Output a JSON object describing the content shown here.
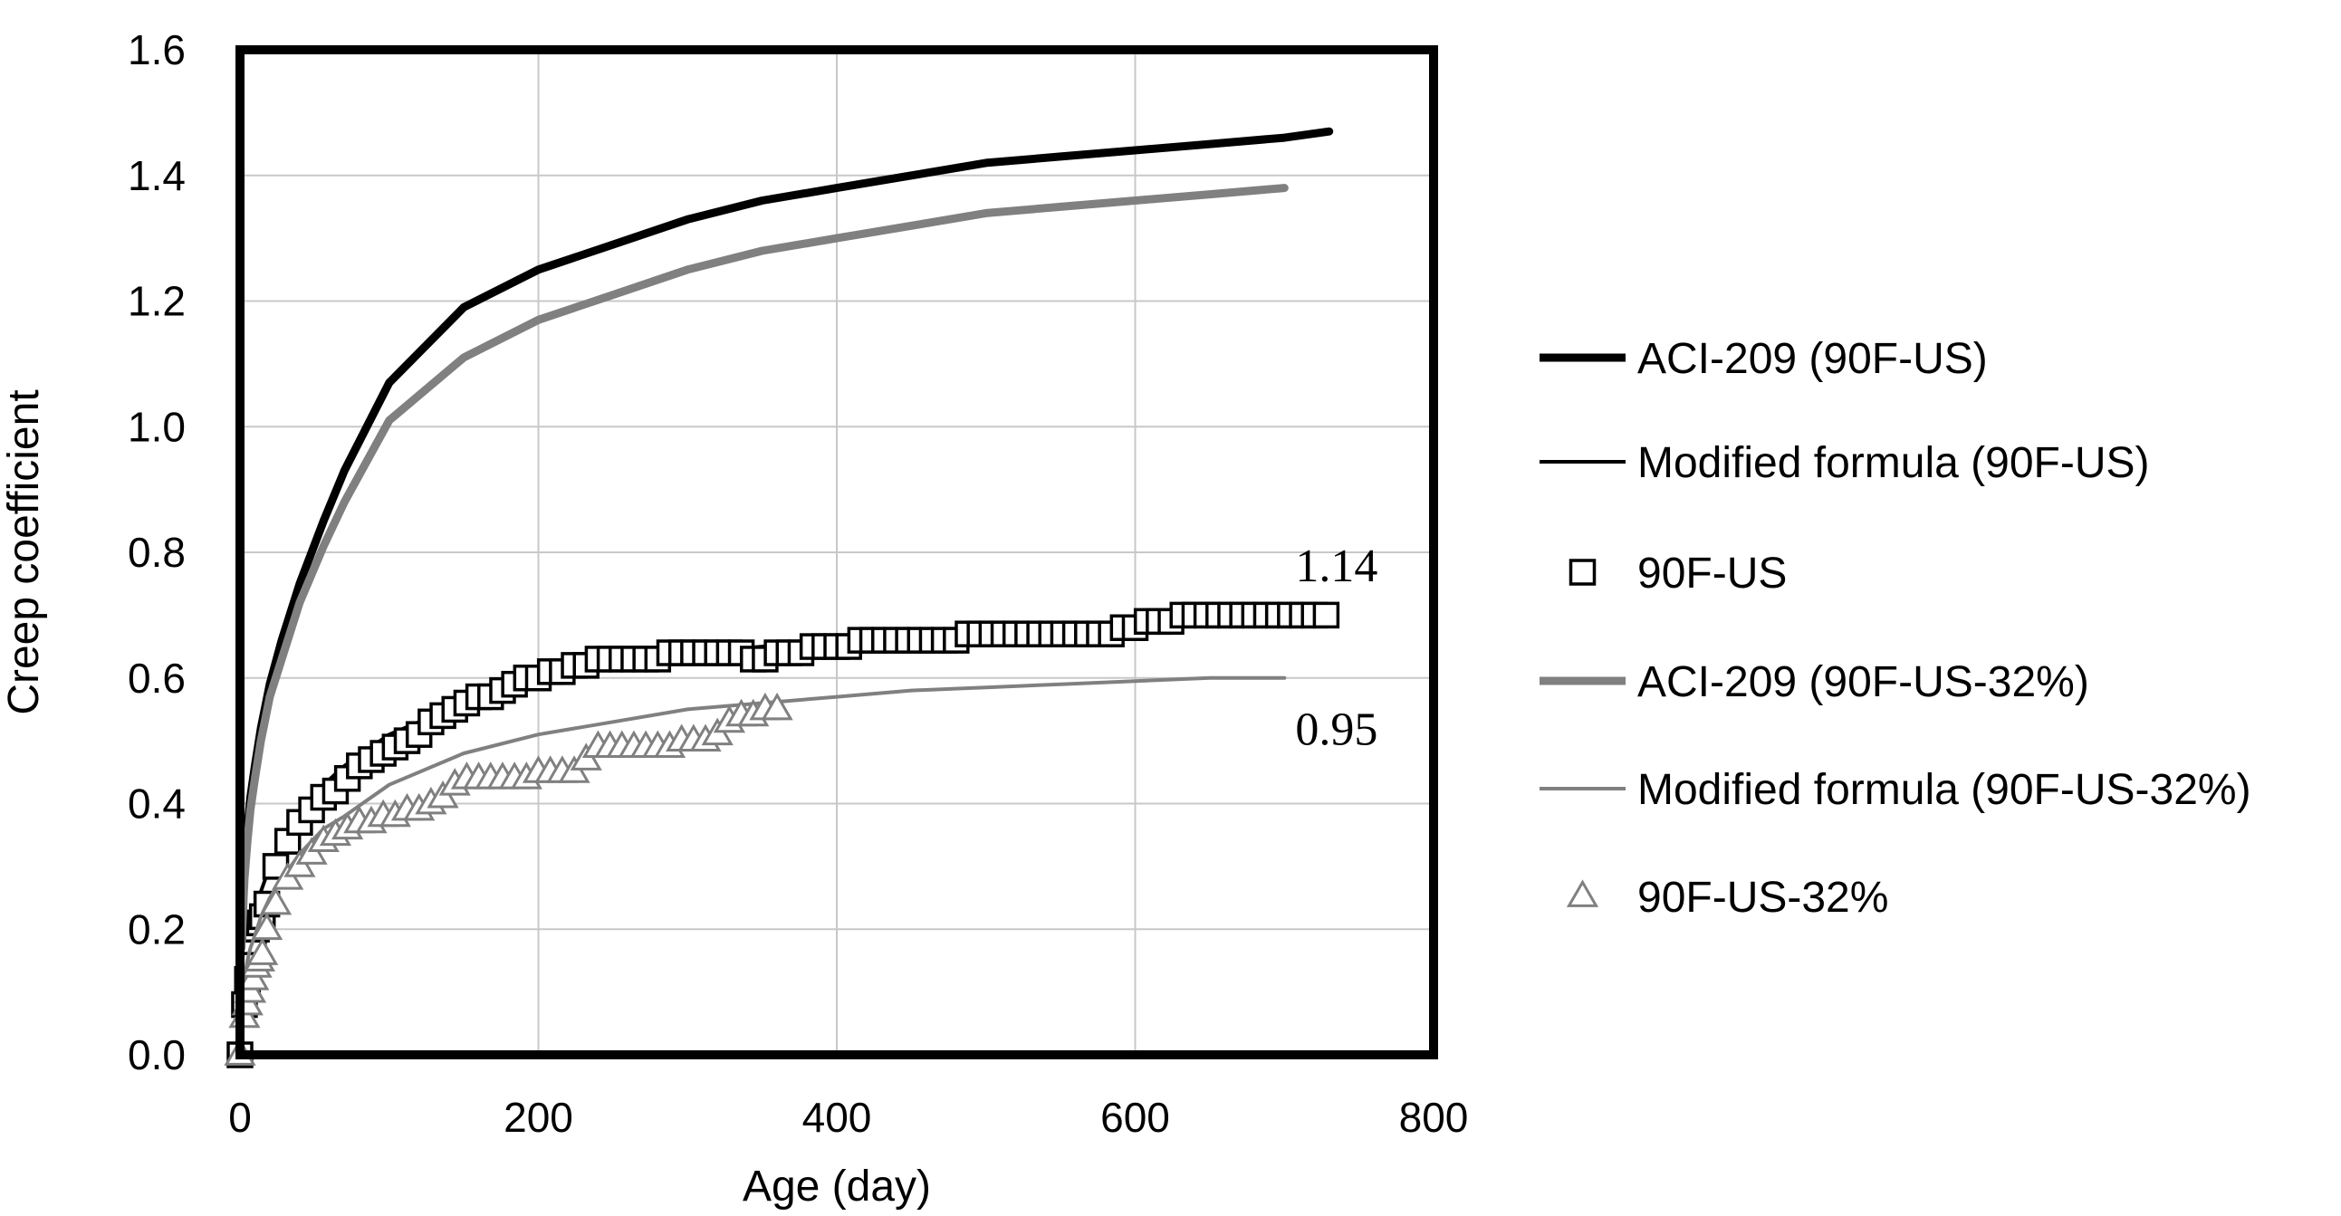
{
  "chart_data": {
    "type": "line",
    "title": "",
    "xlabel": "Age (day)",
    "ylabel": "Creep coefficient",
    "xlim": [
      0,
      800
    ],
    "ylim": [
      0,
      1.6
    ],
    "xticks": [
      "0",
      "200",
      "400",
      "600",
      "800"
    ],
    "yticks": [
      "0.0",
      "0.2",
      "0.4",
      "0.6",
      "0.8",
      "1.0",
      "1.2",
      "1.4",
      "1.6"
    ],
    "grid": true,
    "legend_position": "right",
    "series": [
      {
        "name": "ACI-209 (90F-US)",
        "kind": "line",
        "color": "#000000",
        "weight": "thick",
        "x": [
          1,
          3,
          5,
          7,
          10,
          14,
          20,
          28,
          40,
          56,
          70,
          100,
          150,
          200,
          250,
          300,
          350,
          400,
          450,
          500,
          550,
          600,
          650,
          700,
          730
        ],
        "values": [
          0.18,
          0.3,
          0.36,
          0.41,
          0.46,
          0.52,
          0.59,
          0.66,
          0.75,
          0.85,
          0.93,
          1.07,
          1.19,
          1.25,
          1.29,
          1.33,
          1.36,
          1.38,
          1.4,
          1.42,
          1.43,
          1.44,
          1.45,
          1.46,
          1.47
        ]
      },
      {
        "name": "Modified formula (90F-US)",
        "kind": "line",
        "color": "#000000",
        "weight": "thin",
        "x": [
          1,
          3,
          5,
          7,
          10,
          14,
          20,
          28,
          40,
          56,
          70,
          100,
          150,
          200,
          250,
          300,
          350,
          400,
          450,
          500,
          550,
          600,
          650,
          700,
          730
        ],
        "values": [
          0.1,
          0.15,
          0.18,
          0.2,
          0.23,
          0.26,
          0.3,
          0.34,
          0.38,
          0.43,
          0.46,
          0.51,
          0.56,
          0.59,
          0.62,
          0.64,
          0.65,
          0.66,
          0.67,
          0.68,
          0.685,
          0.69,
          0.7,
          0.705,
          0.71
        ]
      },
      {
        "name": "90F-US",
        "kind": "marker",
        "marker": "square",
        "color": "#000000",
        "x": [
          0,
          3,
          5,
          7,
          9,
          11,
          13,
          15,
          18,
          24,
          32,
          40,
          48,
          56,
          64,
          72,
          80,
          88,
          96,
          104,
          112,
          120,
          128,
          136,
          144,
          152,
          160,
          168,
          176,
          184,
          192,
          200,
          208,
          216,
          224,
          232,
          240,
          248,
          256,
          264,
          272,
          280,
          288,
          296,
          304,
          312,
          320,
          328,
          336,
          344,
          352,
          360,
          368,
          376,
          384,
          392,
          400,
          408,
          416,
          424,
          432,
          440,
          448,
          456,
          464,
          472,
          480,
          488,
          496,
          504,
          512,
          520,
          528,
          536,
          544,
          552,
          560,
          568,
          576,
          584,
          592,
          600,
          608,
          616,
          624,
          632,
          640,
          648,
          656,
          664,
          672,
          680,
          688,
          696,
          704,
          712,
          720,
          728
        ],
        "values": [
          0.0,
          0.08,
          0.12,
          0.15,
          0.18,
          0.2,
          0.21,
          0.22,
          0.24,
          0.3,
          0.34,
          0.37,
          0.39,
          0.41,
          0.42,
          0.44,
          0.46,
          0.47,
          0.48,
          0.49,
          0.5,
          0.51,
          0.53,
          0.54,
          0.55,
          0.56,
          0.57,
          0.57,
          0.58,
          0.59,
          0.6,
          0.6,
          0.61,
          0.61,
          0.62,
          0.62,
          0.63,
          0.63,
          0.63,
          0.63,
          0.63,
          0.63,
          0.64,
          0.64,
          0.64,
          0.64,
          0.64,
          0.64,
          0.64,
          0.63,
          0.63,
          0.64,
          0.64,
          0.64,
          0.65,
          0.65,
          0.65,
          0.65,
          0.66,
          0.66,
          0.66,
          0.66,
          0.66,
          0.66,
          0.66,
          0.66,
          0.66,
          0.67,
          0.67,
          0.67,
          0.67,
          0.67,
          0.67,
          0.67,
          0.67,
          0.67,
          0.67,
          0.67,
          0.67,
          0.67,
          0.68,
          0.68,
          0.69,
          0.69,
          0.69,
          0.7,
          0.7,
          0.7,
          0.7,
          0.7,
          0.7,
          0.7,
          0.7,
          0.7,
          0.7,
          0.7,
          0.7,
          0.7
        ]
      },
      {
        "name": "ACI-209 (90F-US-32%)",
        "kind": "line",
        "color": "#808080",
        "weight": "thick",
        "x": [
          1,
          3,
          5,
          7,
          10,
          14,
          20,
          28,
          40,
          56,
          70,
          100,
          150,
          200,
          250,
          300,
          350,
          400,
          450,
          500,
          550,
          600,
          650,
          700
        ],
        "values": [
          0.17,
          0.28,
          0.34,
          0.39,
          0.44,
          0.5,
          0.57,
          0.63,
          0.72,
          0.81,
          0.88,
          1.01,
          1.11,
          1.17,
          1.21,
          1.25,
          1.28,
          1.3,
          1.32,
          1.34,
          1.35,
          1.36,
          1.37,
          1.38
        ]
      },
      {
        "name": "Modified formula (90F-US-32%)",
        "kind": "line",
        "color": "#808080",
        "weight": "thin",
        "x": [
          1,
          3,
          5,
          7,
          10,
          14,
          20,
          28,
          40,
          56,
          70,
          100,
          150,
          200,
          250,
          300,
          350,
          400,
          450,
          500,
          550,
          600,
          650,
          700
        ],
        "values": [
          0.08,
          0.12,
          0.15,
          0.17,
          0.19,
          0.22,
          0.25,
          0.28,
          0.32,
          0.36,
          0.38,
          0.43,
          0.48,
          0.51,
          0.53,
          0.55,
          0.56,
          0.57,
          0.58,
          0.585,
          0.59,
          0.595,
          0.6,
          0.6
        ]
      },
      {
        "name": "90F-US-32%",
        "kind": "marker",
        "marker": "triangle",
        "color": "#808080",
        "x": [
          0,
          3,
          5,
          7,
          9,
          11,
          13,
          15,
          18,
          24,
          32,
          40,
          48,
          56,
          64,
          72,
          80,
          88,
          96,
          104,
          112,
          120,
          128,
          136,
          144,
          152,
          160,
          168,
          176,
          184,
          192,
          200,
          208,
          216,
          224,
          232,
          240,
          248,
          256,
          264,
          272,
          280,
          288,
          296,
          304,
          312,
          320,
          328,
          336,
          344,
          352,
          360
        ],
        "values": [
          0.0,
          0.06,
          0.08,
          0.1,
          0.12,
          0.14,
          0.15,
          0.16,
          0.2,
          0.24,
          0.28,
          0.3,
          0.32,
          0.34,
          0.35,
          0.36,
          0.37,
          0.37,
          0.38,
          0.38,
          0.39,
          0.39,
          0.4,
          0.41,
          0.43,
          0.44,
          0.44,
          0.44,
          0.44,
          0.44,
          0.44,
          0.45,
          0.45,
          0.45,
          0.45,
          0.47,
          0.49,
          0.49,
          0.49,
          0.49,
          0.49,
          0.49,
          0.49,
          0.5,
          0.5,
          0.5,
          0.51,
          0.53,
          0.54,
          0.54,
          0.55,
          0.55
        ]
      }
    ],
    "annotations": [
      {
        "text": "1.14",
        "x": 735,
        "y": 0.78
      },
      {
        "text": "0.95",
        "x": 735,
        "y": 0.52
      }
    ]
  }
}
